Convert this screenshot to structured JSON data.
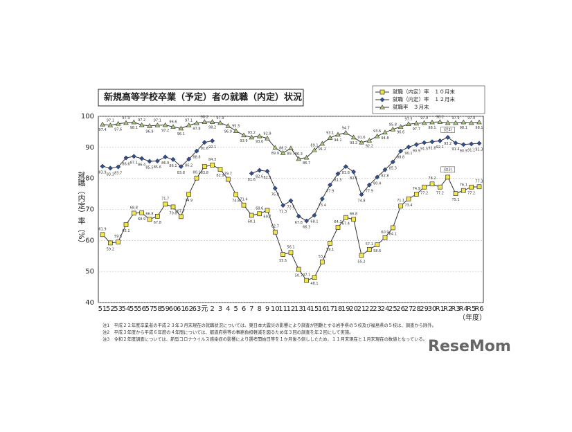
{
  "chart_data": {
    "type": "line",
    "title": "新規高等学校卒業（予定）者の就職（内定）状況",
    "y_label": "就職（内定）率（%）",
    "x_label": "（年度）",
    "categories": [
      "51",
      "52",
      "53",
      "54",
      "55",
      "56",
      "57",
      "58",
      "59",
      "60",
      "61",
      "62",
      "63",
      "元",
      "2",
      "3",
      "4",
      "5",
      "6",
      "7",
      "8",
      "9",
      "10",
      "11",
      "12",
      "13",
      "14",
      "15",
      "16",
      "17",
      "18",
      "19",
      "20",
      "21",
      "22",
      "23",
      "24",
      "25",
      "26",
      "27",
      "28",
      "29",
      "30",
      "R1",
      "R2",
      "R3",
      "R4",
      "R5",
      "R6"
    ],
    "series": [
      {
        "name": "就職（内定）率　１０月末",
        "color": "#f2e64a",
        "marker": "square",
        "values": [
          61.9,
          59.2,
          59.5,
          65.1,
          68.8,
          68.9,
          66.8,
          67.8,
          71.7,
          70.8,
          67.7,
          74.9,
          80.1,
          83.8,
          84.3,
          82.9,
          79.7,
          74.8,
          71.4,
          68.1,
          68.6,
          69.7,
          62.7,
          55.5,
          56.1,
          50.7,
          47.1,
          48.1,
          53.1,
          59.1,
          64.2,
          67.4,
          66.8,
          55.2,
          57.1,
          58.6,
          60.9,
          64.1,
          71.1,
          73.4,
          74.9,
          77.2,
          78.2,
          77.2,
          80.4,
          75.1,
          76.1,
          77.2,
          77.3
        ]
      },
      {
        "name": "就職（内定）率　１２月末",
        "color": "#2f4f8f",
        "marker": "diamond",
        "values": [
          83.9,
          83.3,
          83.7,
          86.6,
          87.1,
          86.4,
          85.5,
          85.6,
          86.9,
          86.1,
          83.8,
          86.2,
          88.8,
          91.6,
          92.1,
          null,
          null,
          null,
          null,
          81.6,
          82.6,
          82.3,
          76.8,
          71.3,
          72.8,
          67.8,
          66.3,
          68.1,
          73.4,
          77.9,
          81.5,
          83.8,
          82.1,
          74.8,
          77.9,
          80.4,
          82.8,
          85.3,
          88.8,
          90.1,
          90.9,
          91.5,
          91.8,
          92.1,
          93.2,
          91.4,
          90.9,
          91.1,
          91.3
        ]
      },
      {
        "name": "就職率　３月末",
        "color": "#a8c878",
        "marker": "triangle",
        "values": [
          97.4,
          97.1,
          97.6,
          97.9,
          98.1,
          97.2,
          96.9,
          97.1,
          97.2,
          96.6,
          96.1,
          97.1,
          97.8,
          98.2,
          98.2,
          97.9,
          96.9,
          95.3,
          93.9,
          93.2,
          93.6,
          92.9,
          89.9,
          88.2,
          89.7,
          86.3,
          86.7,
          89.1,
          91.2,
          93.1,
          94.1,
          94.7,
          93.2,
          91.6,
          92.2,
          93.6,
          94.8,
          95.8,
          96.6,
          97.5,
          97.7,
          97.9,
          98.1,
          98.2,
          97.9,
          97.9,
          98.1,
          97.9,
          98.1
        ]
      }
    ],
    "ylim": [
      40,
      100
    ],
    "yticks": [
      40,
      50,
      60,
      70,
      80,
      90,
      100
    ],
    "grid": true,
    "annotation": "(注3)",
    "notes": [
      "注1　平成２２年度卒業者の平成２３年３月末現在の就職状況については、東日本大震災の影響により調査が困難とする岩手県の５校及び福島県の５校は、調査から除外。",
      "注2　平成３年度から平成６年度の４年間については、都道府県等の事務負担軽減を図るため年３回の調査を年２回にして実施。",
      "注3　令和２年度調査については、新型コロナウイルス感染症の影響により選考開始日等を１か月後ろ倒ししたため、１１月末現在と１月末現在の数値となっている。"
    ],
    "watermark": "ReseMom"
  }
}
